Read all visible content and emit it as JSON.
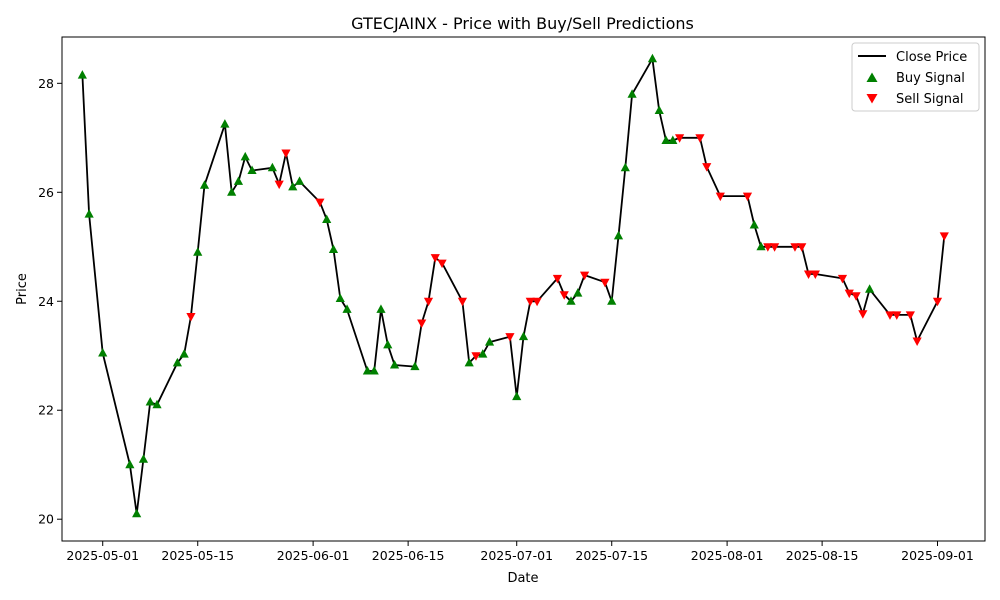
{
  "chart_data": {
    "type": "line",
    "title": "GTECJAINX - Price with Buy/Sell Predictions",
    "xlabel": "Date",
    "ylabel": "Price",
    "xlim": [
      "2025-04-25",
      "2025-09-08"
    ],
    "ylim": [
      19.6,
      28.85
    ],
    "x_ticks": [
      "2025-05-01",
      "2025-05-15",
      "2025-06-01",
      "2025-06-15",
      "2025-07-01",
      "2025-07-15",
      "2025-08-01",
      "2025-08-15",
      "2025-09-01"
    ],
    "y_ticks": [
      20,
      22,
      24,
      26,
      28
    ],
    "grid": false,
    "legend_position": "upper right",
    "colors": {
      "line": "#000000",
      "buy": "#008000",
      "sell": "#ff0000"
    },
    "series": [
      {
        "name": "Close Price",
        "kind": "line",
        "points": [
          [
            "2025-04-28",
            28.15
          ],
          [
            "2025-04-29",
            25.6
          ],
          [
            "2025-05-01",
            23.05
          ],
          [
            "2025-05-05",
            21.0
          ],
          [
            "2025-05-06",
            20.1
          ],
          [
            "2025-05-07",
            21.1
          ],
          [
            "2025-05-08",
            22.15
          ],
          [
            "2025-05-09",
            22.1
          ],
          [
            "2025-05-12",
            22.87
          ],
          [
            "2025-05-13",
            23.03
          ],
          [
            "2025-05-14",
            23.72
          ],
          [
            "2025-05-15",
            24.9
          ],
          [
            "2025-05-16",
            26.13
          ],
          [
            "2025-05-19",
            27.25
          ],
          [
            "2025-05-20",
            26.0
          ],
          [
            "2025-05-21",
            26.2
          ],
          [
            "2025-05-22",
            26.65
          ],
          [
            "2025-05-23",
            26.4
          ],
          [
            "2025-05-26",
            26.45
          ],
          [
            "2025-05-27",
            26.15
          ],
          [
            "2025-05-28",
            26.72
          ],
          [
            "2025-05-29",
            26.1
          ],
          [
            "2025-05-30",
            26.2
          ],
          [
            "2025-06-02",
            25.82
          ],
          [
            "2025-06-03",
            25.5
          ],
          [
            "2025-06-04",
            24.95
          ],
          [
            "2025-06-05",
            24.05
          ],
          [
            "2025-06-06",
            23.85
          ],
          [
            "2025-06-09",
            22.72
          ],
          [
            "2025-06-10",
            22.72
          ],
          [
            "2025-06-11",
            23.85
          ],
          [
            "2025-06-12",
            23.2
          ],
          [
            "2025-06-13",
            22.83
          ],
          [
            "2025-06-16",
            22.8
          ],
          [
            "2025-06-17",
            23.6
          ],
          [
            "2025-06-18",
            24.0
          ],
          [
            "2025-06-19",
            24.8
          ],
          [
            "2025-06-20",
            24.7
          ],
          [
            "2025-06-23",
            24.0
          ],
          [
            "2025-06-24",
            22.87
          ],
          [
            "2025-06-25",
            23.0
          ],
          [
            "2025-06-26",
            23.03
          ],
          [
            "2025-06-27",
            23.25
          ],
          [
            "2025-06-30",
            23.35
          ],
          [
            "2025-07-01",
            22.25
          ],
          [
            "2025-07-02",
            23.35
          ],
          [
            "2025-07-03",
            24.0
          ],
          [
            "2025-07-04",
            24.0
          ],
          [
            "2025-07-07",
            24.42
          ],
          [
            "2025-07-08",
            24.12
          ],
          [
            "2025-07-09",
            24.0
          ],
          [
            "2025-07-10",
            24.15
          ],
          [
            "2025-07-11",
            24.48
          ],
          [
            "2025-07-14",
            24.35
          ],
          [
            "2025-07-15",
            24.0
          ],
          [
            "2025-07-16",
            25.2
          ],
          [
            "2025-07-17",
            26.45
          ],
          [
            "2025-07-18",
            27.8
          ],
          [
            "2025-07-21",
            28.45
          ],
          [
            "2025-07-22",
            27.5
          ],
          [
            "2025-07-23",
            26.95
          ],
          [
            "2025-07-24",
            26.95
          ],
          [
            "2025-07-25",
            27.0
          ],
          [
            "2025-07-28",
            27.0
          ],
          [
            "2025-07-29",
            26.47
          ],
          [
            "2025-07-31",
            25.93
          ],
          [
            "2025-08-04",
            25.93
          ],
          [
            "2025-08-05",
            25.4
          ],
          [
            "2025-08-06",
            25.0
          ],
          [
            "2025-08-07",
            25.0
          ],
          [
            "2025-08-08",
            25.0
          ],
          [
            "2025-08-11",
            25.0
          ],
          [
            "2025-08-12",
            25.0
          ],
          [
            "2025-08-13",
            24.5
          ],
          [
            "2025-08-14",
            24.5
          ],
          [
            "2025-08-18",
            24.42
          ],
          [
            "2025-08-19",
            24.15
          ],
          [
            "2025-08-20",
            24.1
          ],
          [
            "2025-08-21",
            23.77
          ],
          [
            "2025-08-22",
            24.22
          ],
          [
            "2025-08-25",
            23.75
          ],
          [
            "2025-08-26",
            23.75
          ],
          [
            "2025-08-28",
            23.75
          ],
          [
            "2025-08-29",
            23.27
          ],
          [
            "2025-09-01",
            24.0
          ],
          [
            "2025-09-02",
            25.2
          ]
        ]
      },
      {
        "name": "Buy Signal",
        "kind": "marker",
        "points": [
          [
            "2025-04-28",
            28.15
          ],
          [
            "2025-04-29",
            25.6
          ],
          [
            "2025-05-01",
            23.05
          ],
          [
            "2025-05-05",
            21.0
          ],
          [
            "2025-05-06",
            20.1
          ],
          [
            "2025-05-07",
            21.1
          ],
          [
            "2025-05-08",
            22.15
          ],
          [
            "2025-05-09",
            22.1
          ],
          [
            "2025-05-12",
            22.87
          ],
          [
            "2025-05-13",
            23.03
          ],
          [
            "2025-05-15",
            24.9
          ],
          [
            "2025-05-16",
            26.13
          ],
          [
            "2025-05-19",
            27.25
          ],
          [
            "2025-05-20",
            26.0
          ],
          [
            "2025-05-21",
            26.2
          ],
          [
            "2025-05-22",
            26.65
          ],
          [
            "2025-05-23",
            26.4
          ],
          [
            "2025-05-26",
            26.45
          ],
          [
            "2025-05-29",
            26.1
          ],
          [
            "2025-05-30",
            26.2
          ],
          [
            "2025-06-03",
            25.5
          ],
          [
            "2025-06-04",
            24.95
          ],
          [
            "2025-06-05",
            24.05
          ],
          [
            "2025-06-06",
            23.85
          ],
          [
            "2025-06-09",
            22.72
          ],
          [
            "2025-06-10",
            22.72
          ],
          [
            "2025-06-11",
            23.85
          ],
          [
            "2025-06-12",
            23.2
          ],
          [
            "2025-06-13",
            22.83
          ],
          [
            "2025-06-16",
            22.8
          ],
          [
            "2025-06-24",
            22.87
          ],
          [
            "2025-06-26",
            23.03
          ],
          [
            "2025-06-27",
            23.25
          ],
          [
            "2025-07-01",
            22.25
          ],
          [
            "2025-07-02",
            23.35
          ],
          [
            "2025-07-09",
            24.0
          ],
          [
            "2025-07-10",
            24.15
          ],
          [
            "2025-07-15",
            24.0
          ],
          [
            "2025-07-16",
            25.2
          ],
          [
            "2025-07-17",
            26.45
          ],
          [
            "2025-07-18",
            27.8
          ],
          [
            "2025-07-21",
            28.45
          ],
          [
            "2025-07-22",
            27.5
          ],
          [
            "2025-07-23",
            26.95
          ],
          [
            "2025-07-24",
            26.95
          ],
          [
            "2025-08-05",
            25.4
          ],
          [
            "2025-08-06",
            25.0
          ],
          [
            "2025-08-22",
            24.22
          ]
        ]
      },
      {
        "name": "Sell Signal",
        "kind": "marker",
        "points": [
          [
            "2025-05-14",
            23.72
          ],
          [
            "2025-05-27",
            26.15
          ],
          [
            "2025-05-28",
            26.72
          ],
          [
            "2025-06-02",
            25.82
          ],
          [
            "2025-06-17",
            23.6
          ],
          [
            "2025-06-18",
            24.0
          ],
          [
            "2025-06-19",
            24.8
          ],
          [
            "2025-06-20",
            24.7
          ],
          [
            "2025-06-23",
            24.0
          ],
          [
            "2025-06-25",
            23.0
          ],
          [
            "2025-06-30",
            23.35
          ],
          [
            "2025-07-03",
            24.0
          ],
          [
            "2025-07-04",
            24.0
          ],
          [
            "2025-07-07",
            24.42
          ],
          [
            "2025-07-08",
            24.12
          ],
          [
            "2025-07-11",
            24.48
          ],
          [
            "2025-07-14",
            24.35
          ],
          [
            "2025-07-25",
            27.0
          ],
          [
            "2025-07-28",
            27.0
          ],
          [
            "2025-07-29",
            26.47
          ],
          [
            "2025-07-31",
            25.93
          ],
          [
            "2025-08-04",
            25.93
          ],
          [
            "2025-08-07",
            25.0
          ],
          [
            "2025-08-08",
            25.0
          ],
          [
            "2025-08-11",
            25.0
          ],
          [
            "2025-08-12",
            25.0
          ],
          [
            "2025-08-13",
            24.5
          ],
          [
            "2025-08-14",
            24.5
          ],
          [
            "2025-08-18",
            24.42
          ],
          [
            "2025-08-19",
            24.15
          ],
          [
            "2025-08-20",
            24.1
          ],
          [
            "2025-08-21",
            23.77
          ],
          [
            "2025-08-25",
            23.75
          ],
          [
            "2025-08-26",
            23.75
          ],
          [
            "2025-08-28",
            23.75
          ],
          [
            "2025-08-29",
            23.27
          ],
          [
            "2025-09-01",
            24.0
          ],
          [
            "2025-09-02",
            25.2
          ]
        ]
      }
    ]
  }
}
